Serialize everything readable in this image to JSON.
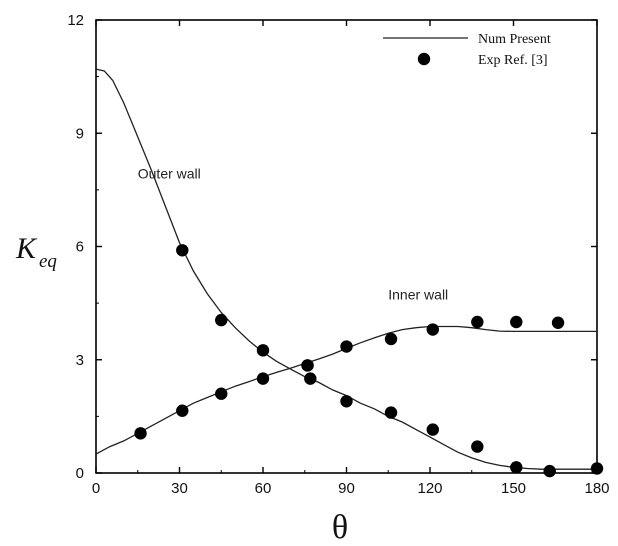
{
  "page_fragment_top_text": "",
  "chart_data": {
    "type": "line",
    "xlabel": "θ",
    "ylabel_main": "K",
    "ylabel_sub": "eq",
    "xlim": [
      0,
      180
    ],
    "ylim": [
      0,
      12
    ],
    "xticks": [
      0,
      30,
      60,
      90,
      120,
      150,
      180
    ],
    "yticks": [
      0,
      3,
      6,
      9,
      12
    ],
    "grid": false,
    "legend_position": "top-right",
    "legend": [
      {
        "label": "Num Present",
        "marker": "line"
      },
      {
        "label": "Exp Ref. [3]",
        "marker": "circle"
      }
    ],
    "annotations": [
      {
        "text": "Outer wall",
        "x": 15,
        "y": 7.8
      },
      {
        "text": "Inner wall",
        "x": 105,
        "y": 4.6
      }
    ],
    "series": [
      {
        "name": "Num Present",
        "kind": "line",
        "color": "#222222",
        "curves": [
          {
            "id": "outer-wall",
            "x": [
              0,
              3,
              6,
              10,
              15,
              20,
              25,
              30,
              35,
              40,
              45,
              50,
              55,
              60,
              65,
              70,
              75,
              80,
              85,
              90,
              95,
              100,
              105,
              110,
              115,
              120,
              125,
              130,
              135,
              140,
              145,
              150,
              155,
              160,
              165,
              170,
              175,
              180
            ],
            "y": [
              10.7,
              10.65,
              10.4,
              9.8,
              8.9,
              8.0,
              7.05,
              6.1,
              5.35,
              4.75,
              4.25,
              3.85,
              3.5,
              3.2,
              2.95,
              2.75,
              2.55,
              2.4,
              2.2,
              2.05,
              1.85,
              1.7,
              1.5,
              1.35,
              1.15,
              0.95,
              0.75,
              0.55,
              0.4,
              0.28,
              0.2,
              0.15,
              0.12,
              0.1,
              0.1,
              0.1,
              0.1,
              0.1
            ]
          },
          {
            "id": "inner-wall",
            "x": [
              0,
              5,
              10,
              15,
              20,
              25,
              30,
              35,
              40,
              45,
              50,
              55,
              60,
              65,
              70,
              75,
              80,
              85,
              90,
              95,
              100,
              105,
              110,
              115,
              120,
              125,
              130,
              135,
              140,
              145,
              150,
              155,
              160,
              165,
              170,
              175,
              180
            ],
            "y": [
              0.5,
              0.7,
              0.85,
              1.05,
              1.25,
              1.45,
              1.65,
              1.85,
              2.0,
              2.15,
              2.3,
              2.42,
              2.55,
              2.67,
              2.78,
              2.9,
              3.02,
              3.15,
              3.3,
              3.45,
              3.58,
              3.7,
              3.8,
              3.85,
              3.88,
              3.88,
              3.88,
              3.85,
              3.8,
              3.76,
              3.75,
              3.75,
              3.75,
              3.75,
              3.75,
              3.75,
              3.75
            ]
          }
        ]
      },
      {
        "name": "Exp Ref. [3]",
        "kind": "scatter",
        "color": "#000000",
        "x": [
          16,
          31,
          31,
          45,
          45,
          60,
          60,
          76,
          76,
          77,
          90,
          90,
          106,
          106,
          121,
          121,
          137,
          137,
          151,
          151,
          163,
          166,
          180
        ],
        "y": [
          1.05,
          1.65,
          5.9,
          2.1,
          4.05,
          2.5,
          3.25,
          2.85,
          2.85,
          2.5,
          1.9,
          3.35,
          1.6,
          3.55,
          1.15,
          3.8,
          0.7,
          4.0,
          0.15,
          4.0,
          0.05,
          3.98,
          0.12
        ]
      }
    ]
  }
}
